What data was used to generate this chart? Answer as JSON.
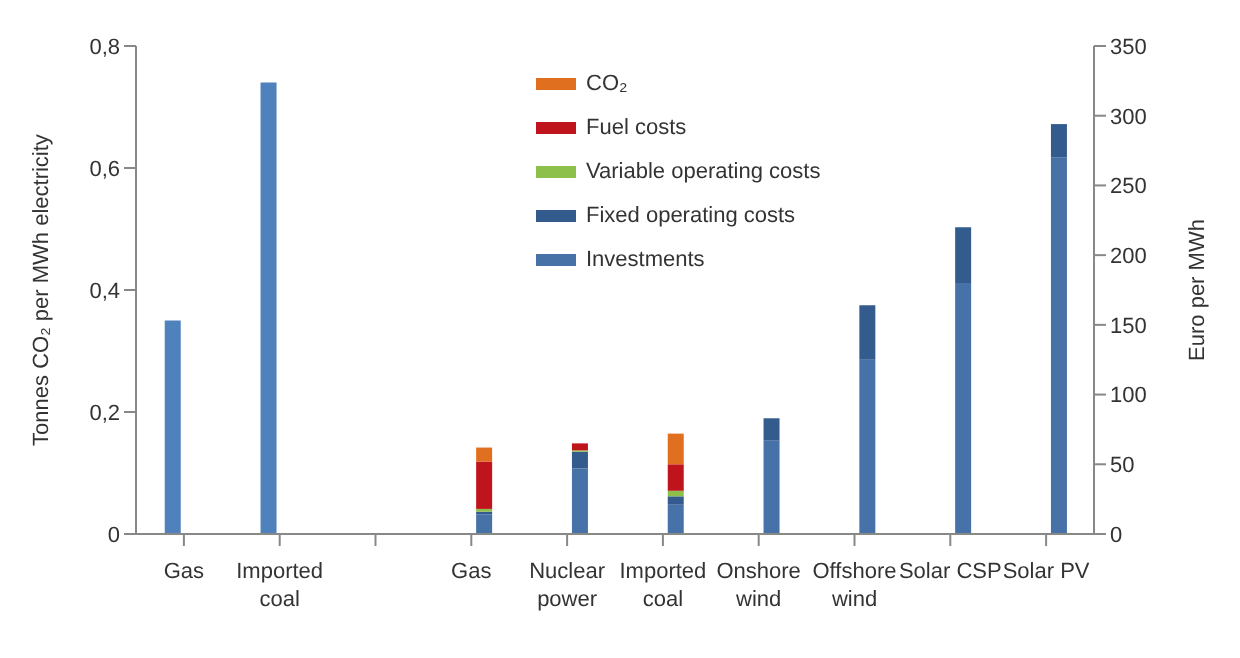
{
  "chart_data": {
    "type": "bar",
    "stacked": true,
    "categories": [
      "Gas",
      "Imported coal",
      null,
      "Gas",
      "Nuclear power",
      "Imported coal",
      "Onshore wind",
      "Offshore wind",
      "Solar CSP",
      "Solar PV"
    ],
    "series": [
      {
        "color": "#4f81bd",
        "axis": "y",
        "values": [
          0.35,
          0.74,
          null,
          null,
          null,
          null,
          null,
          null,
          null,
          null
        ]
      },
      {
        "name": "Investments",
        "color": "#4672a8",
        "axis": "y2",
        "values": [
          null,
          null,
          null,
          14,
          47,
          21,
          67,
          125,
          180,
          270
        ]
      },
      {
        "name": "Fixed operating costs",
        "color": "#335b8e",
        "axis": "y2",
        "values": [
          null,
          null,
          null,
          2,
          12,
          6,
          16,
          39,
          40,
          24
        ]
      },
      {
        "name": "Variable operating costs",
        "color": "#8cc04a",
        "axis": "y2",
        "values": [
          null,
          null,
          null,
          2,
          1,
          4,
          0,
          0,
          0,
          0
        ]
      },
      {
        "name": "Fuel costs",
        "color": "#c0141c",
        "axis": "y2",
        "values": [
          null,
          null,
          null,
          34,
          5,
          19,
          0,
          0,
          0,
          0
        ]
      },
      {
        "name": "CO₂",
        "color": "#e07020",
        "axis": "y2",
        "values": [
          null,
          null,
          null,
          10,
          0,
          22,
          0,
          0,
          0,
          0
        ]
      }
    ],
    "ylabel": "Tonnes CO₂ per MWh electricity",
    "y2label": "Euro per MWh",
    "ylim": [
      0,
      0.8
    ],
    "yticks": [
      0,
      {
        "value": 0.2,
        "label": "0,2"
      },
      {
        "value": 0.4,
        "label": "0,4"
      },
      {
        "value": 0.6,
        "label": "0,6"
      },
      {
        "value": 0.8,
        "label": "0,8"
      }
    ],
    "y2lim": [
      0,
      350
    ],
    "y2ticks": [
      0,
      50,
      100,
      150,
      200,
      250,
      300,
      350
    ],
    "legend": "top"
  }
}
